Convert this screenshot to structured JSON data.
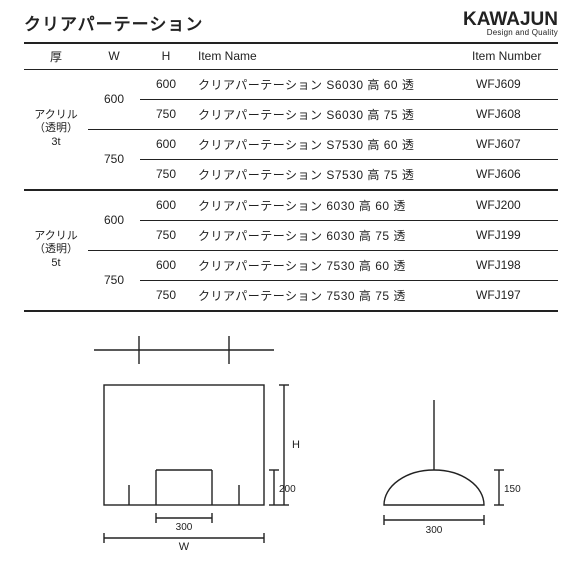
{
  "header": {
    "title": "クリアパーテーション",
    "brand": "KAWAJUN",
    "tagline": "Design and Quality"
  },
  "table": {
    "columns": {
      "thick": "厚",
      "w": "W",
      "h": "H",
      "name": "Item Name",
      "number": "Item Number"
    },
    "groups": [
      {
        "thick_lines": [
          "アクリル",
          "（透明）",
          "3t"
        ],
        "wgroups": [
          {
            "w": "600",
            "rows": [
              {
                "h": "600",
                "name": "クリアパーテーション S6030 高 60 透",
                "num": "WFJ609"
              },
              {
                "h": "750",
                "name": "クリアパーテーション S6030 高 75 透",
                "num": "WFJ608"
              }
            ]
          },
          {
            "w": "750",
            "rows": [
              {
                "h": "600",
                "name": "クリアパーテーション S7530 高 60 透",
                "num": "WFJ607"
              },
              {
                "h": "750",
                "name": "クリアパーテーション S7530 高 75 透",
                "num": "WFJ606"
              }
            ]
          }
        ]
      },
      {
        "thick_lines": [
          "アクリル",
          "（透明）",
          "5t"
        ],
        "wgroups": [
          {
            "w": "600",
            "rows": [
              {
                "h": "600",
                "name": "クリアパーテーション 6030 高 60 透",
                "num": "WFJ200"
              },
              {
                "h": "750",
                "name": "クリアパーテーション 6030 高 75 透",
                "num": "WFJ199"
              }
            ]
          },
          {
            "w": "750",
            "rows": [
              {
                "h": "600",
                "name": "クリアパーテーション 7530 高 60 透",
                "num": "WFJ198"
              },
              {
                "h": "750",
                "name": "クリアパーテーション 7530 高 75 透",
                "num": "WFJ197"
              }
            ]
          }
        ]
      }
    ]
  },
  "diagram": {
    "stroke": "#222222",
    "stroke_width": 1.4,
    "font_size": 11,
    "front": {
      "W_label": "W",
      "H_label": "H",
      "slot_width_label": "300",
      "slot_height_label": "200"
    },
    "side": {
      "base_width_label": "300",
      "height_label": "150"
    }
  }
}
